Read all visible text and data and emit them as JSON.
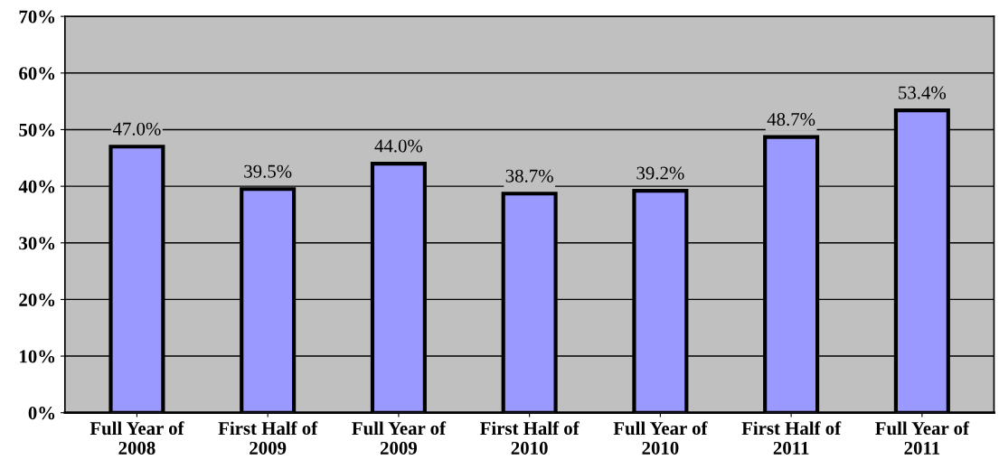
{
  "chart_data": {
    "type": "bar",
    "categories": [
      "Full Year of\n2008",
      "First Half of\n2009",
      "Full Year of\n2009",
      "First Half of\n2010",
      "Full Year of\n2010",
      "First Half of\n2011",
      "Full Year of\n2011"
    ],
    "values": [
      47.0,
      39.5,
      44.0,
      38.7,
      39.2,
      48.7,
      53.4
    ],
    "value_labels": [
      "47.0%",
      "39.5%",
      "44.0%",
      "38.7%",
      "39.2%",
      "48.7%",
      "53.4%"
    ],
    "color": "#9999ff",
    "ylim": [
      0,
      70
    ],
    "yticks": [
      {
        "value": 0,
        "label": "0%"
      },
      {
        "value": 10,
        "label": "10%"
      },
      {
        "value": 20,
        "label": "20%"
      },
      {
        "value": 30,
        "label": "30%"
      },
      {
        "value": 40,
        "label": "40%"
      },
      {
        "value": 50,
        "label": "50%"
      },
      {
        "value": 60,
        "label": "60%"
      },
      {
        "value": 70,
        "label": "70%"
      }
    ],
    "grid": "y"
  }
}
